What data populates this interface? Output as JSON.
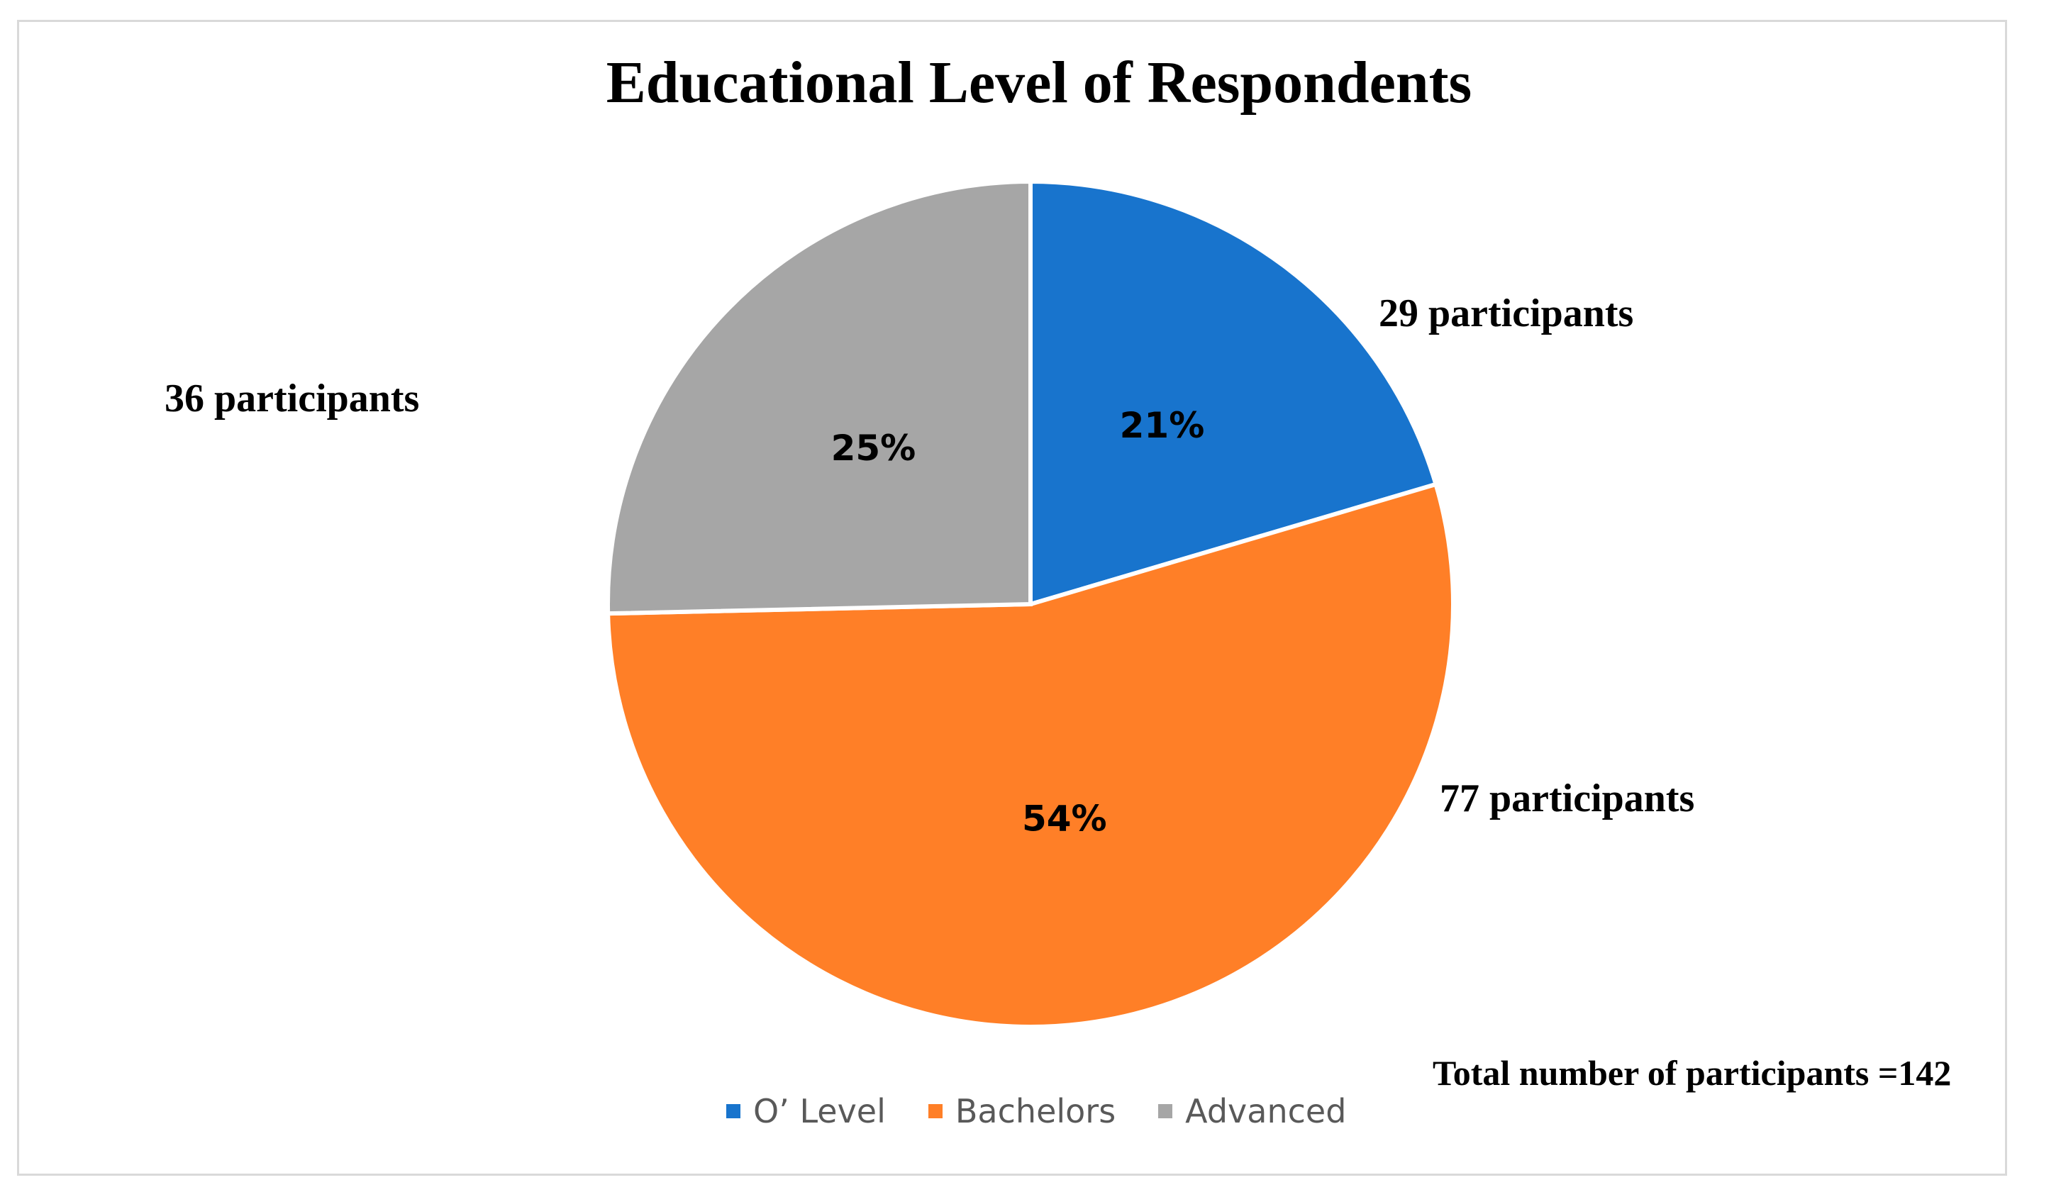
{
  "chart_data": {
    "type": "pie",
    "title": "Educational Level of Respondents",
    "slices": [
      {
        "name": "O’ Level",
        "value": 29,
        "percent_label": "21%",
        "count_label": "29 participants",
        "color": "#1874CD"
      },
      {
        "name": "Bachelors",
        "value": 77,
        "percent_label": "54%",
        "count_label": "77 participants",
        "color": "#FF7F27"
      },
      {
        "name": "Advanced",
        "value": 36,
        "percent_label": "25%",
        "count_label": "36 participants",
        "color": "#A6A6A6"
      }
    ],
    "legend": [
      "O’ Level",
      "Bachelors",
      "Advanced"
    ],
    "legend_position": "bottom",
    "annotation": "Total number of participants =142"
  }
}
